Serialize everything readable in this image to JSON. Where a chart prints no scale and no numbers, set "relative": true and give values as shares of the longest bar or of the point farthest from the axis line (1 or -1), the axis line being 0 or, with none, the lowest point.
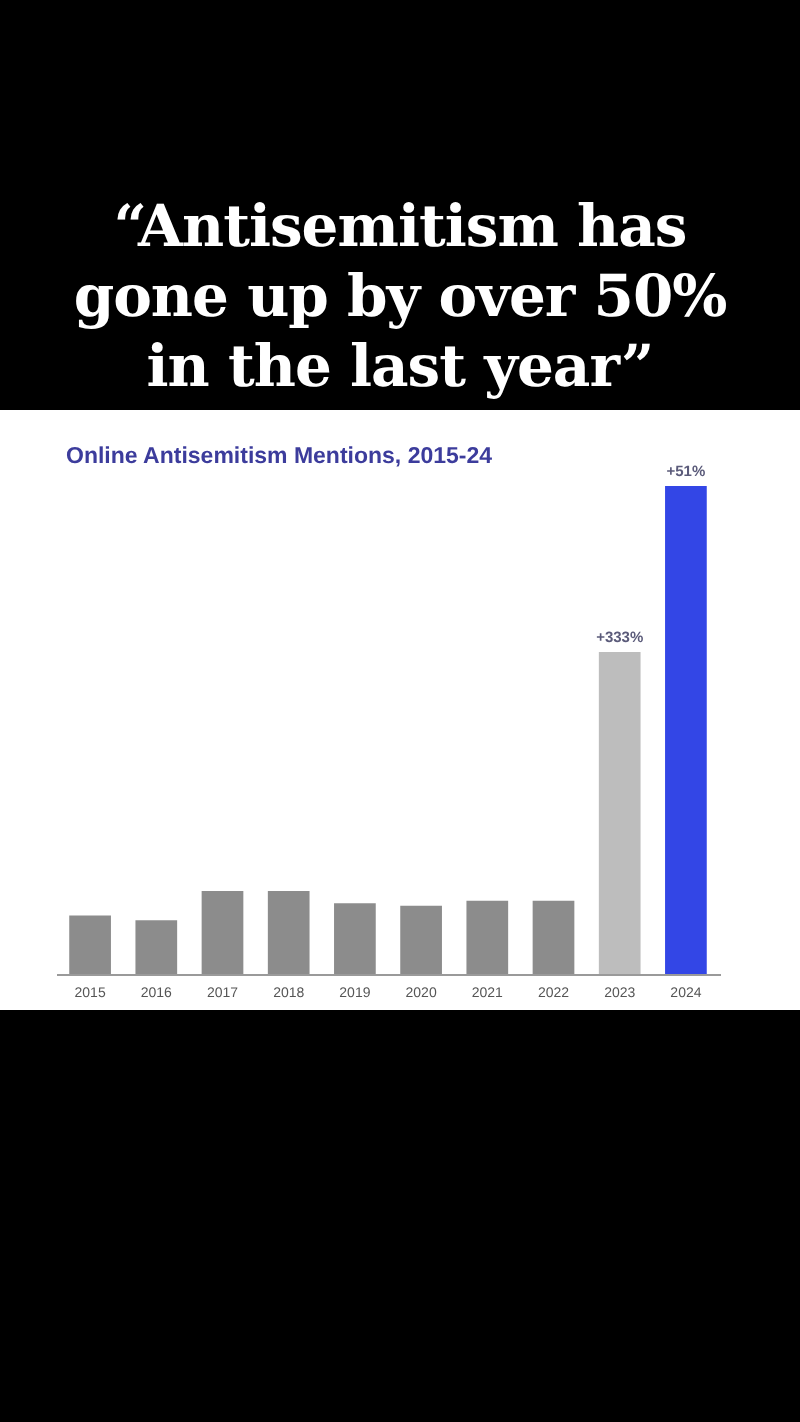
{
  "chart_data": {
    "type": "bar",
    "title": "“Antisemitism has gone up by over 50% in the last year”",
    "subtitle": "Online Antisemitism Mentions, 2015-24",
    "categories": [
      "2015",
      "2016",
      "2017",
      "2018",
      "2019",
      "2020",
      "2021",
      "2022",
      "2023",
      "2024"
    ],
    "values": [
      0.12,
      0.11,
      0.17,
      0.17,
      0.145,
      0.14,
      0.15,
      0.15,
      0.66,
      1
    ],
    "colors": [
      "#8c8c8c",
      "#8c8c8c",
      "#8c8c8c",
      "#8c8c8c",
      "#8c8c8c",
      "#8c8c8c",
      "#8c8c8c",
      "#8c8c8c",
      "#bdbdbd",
      "#3346e6"
    ],
    "relative": true,
    "annotations": [
      {
        "text": "+333%",
        "x": "2023",
        "y": 0.66
      },
      {
        "text": "+51%",
        "x": "2024",
        "y": 1
      }
    ]
  }
}
